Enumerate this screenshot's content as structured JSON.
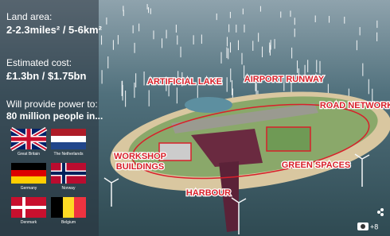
{
  "sidebar": {
    "land_label": "Land area:",
    "land_value": "2-2.3miles² / 5-6km²",
    "cost_label": "Estimated cost:",
    "cost_value": "£1.3bn / $1.75bn",
    "power_label": "Will provide power to:",
    "power_value": "80 million people in...",
    "countries": [
      "Great Britain",
      "The Netherlands",
      "Germany",
      "Norway",
      "Denmark",
      "Belgium"
    ]
  },
  "callouts": {
    "lake": "ARTIFICIAL LAKE",
    "runway": "AIRPORT RUNWAY",
    "roads": "ROAD NETWORK",
    "workshop": [
      "WORKSHOP",
      "BUILDINGS"
    ],
    "green": "GREEN SPACES",
    "harbour": "HARBOUR"
  },
  "photo_count": "+8"
}
